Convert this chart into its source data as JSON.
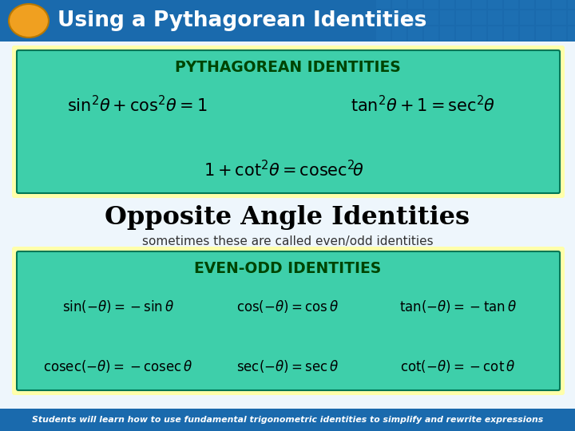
{
  "title_text": "Using a Pythagorean Identities",
  "title_bg": "#1a6aad",
  "title_fg": "#ffffff",
  "oval_color": "#f0a020",
  "slide_bg": "#cce8f0",
  "box1_bg": "#3ecfaa",
  "box1_border": "#ffffaa",
  "box1_title": "PYTHAGOREAN IDENTITIES",
  "box1_title_color": "#004400",
  "box1_eq1": "$\\sin^2\\!\\theta + \\cos^2\\!\\theta = 1$",
  "box1_eq2": "$\\tan^2\\!\\theta + 1 = \\sec^2\\!\\theta$",
  "box1_eq3": "$1 + \\cot^2\\!\\theta = \\mathrm{cosec}^2\\!\\theta$",
  "middle_title": "Opposite Angle Identities",
  "middle_subtitle": "sometimes these are called even/odd identities",
  "middle_title_color": "#000000",
  "middle_subtitle_color": "#333333",
  "box2_bg": "#3ecfaa",
  "box2_border": "#ffffaa",
  "box2_title": "EVEN-ODD IDENTITIES",
  "box2_title_color": "#004400",
  "box2_eq1a": "$\\sin(-\\theta) = -\\sin\\theta$",
  "box2_eq1b": "$\\cos(-\\theta) = \\cos\\theta$",
  "box2_eq1c": "$\\tan(-\\theta) = -\\tan\\theta$",
  "box2_eq2a": "$\\mathrm{cosec}(-\\theta) = -\\mathrm{cosec}\\,\\theta$",
  "box2_eq2b": "$\\sec(-\\theta) = \\sec\\theta$",
  "box2_eq2c": "$\\cot(-\\theta) = -\\cot\\theta$",
  "footer_text": "Students will learn how to use fundamental trigonometric identities to simplify and rewrite expressions",
  "footer_bg": "#1a6aad",
  "footer_fg": "#ffffff",
  "grid_color": "#4499cc",
  "body_bg": "#eef6fc"
}
